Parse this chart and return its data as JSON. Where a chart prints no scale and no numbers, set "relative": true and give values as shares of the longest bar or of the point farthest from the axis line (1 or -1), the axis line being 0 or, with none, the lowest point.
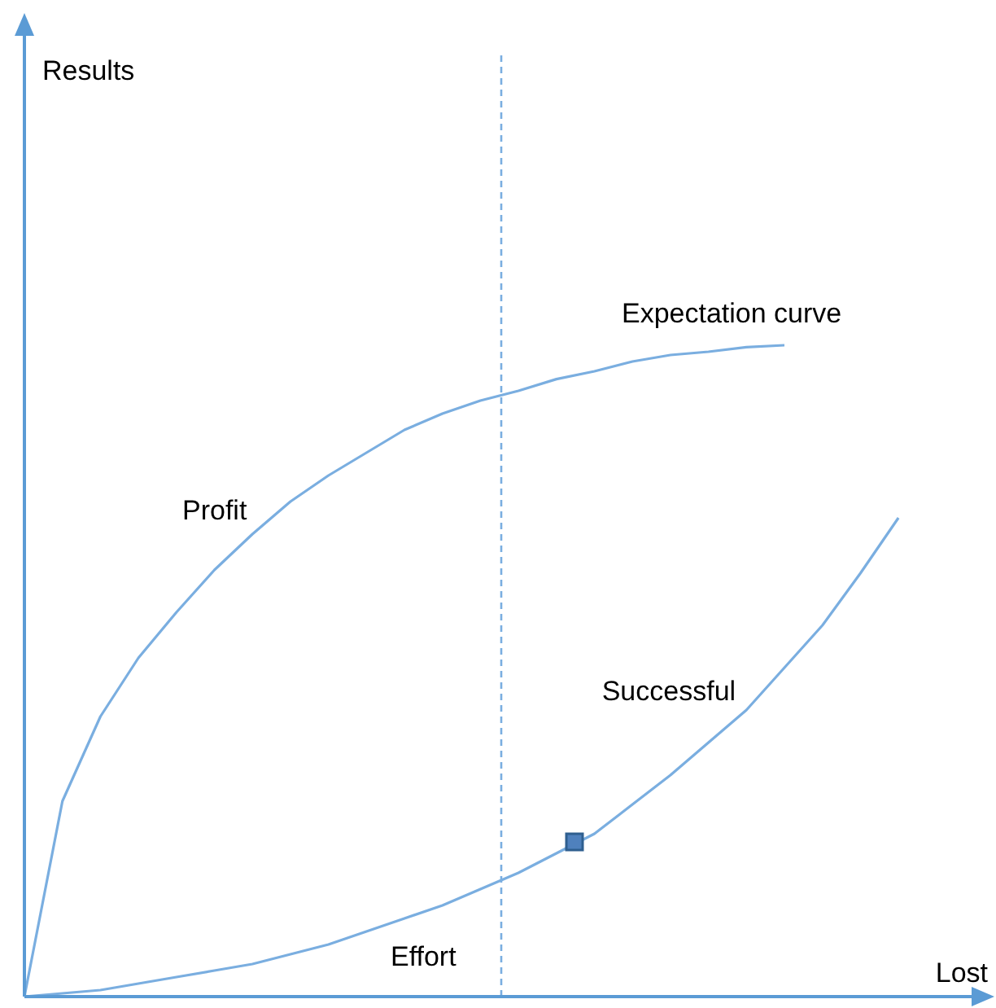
{
  "chart_data": {
    "type": "line",
    "relative": true,
    "xlabel": "Lost",
    "line_style": "solid",
    "categories": [
      null,
      null,
      null,
      null,
      null,
      null,
      null,
      null,
      null,
      null,
      null,
      null,
      null,
      null,
      null,
      null,
      null,
      null,
      null,
      null,
      null,
      null,
      null,
      null
    ],
    "series": [
      {
        "name": "Expectation curve",
        "color": "#7aaee0",
        "values": [
          0,
          0.3,
          0.43,
          0.52,
          0.59,
          0.655,
          0.71,
          0.76,
          0.8,
          0.835,
          0.87,
          0.895,
          0.915,
          0.93,
          0.948,
          0.96,
          0.975,
          0.985,
          0.99,
          0.997,
          1,
          null,
          null,
          null
        ]
      },
      {
        "name": "Successful",
        "color": "#7aaee0",
        "values": [
          0,
          0.005,
          0.01,
          0.02,
          0.03,
          0.04,
          0.05,
          0.065,
          0.08,
          0.1,
          0.12,
          0.14,
          0.165,
          0.19,
          0.22,
          0.25,
          0.295,
          0.34,
          0.39,
          0.44,
          0.505,
          0.57,
          0.65,
          0.735
        ]
      }
    ],
    "annotations": [
      "Results",
      "Profit",
      "Effort"
    ]
  }
}
